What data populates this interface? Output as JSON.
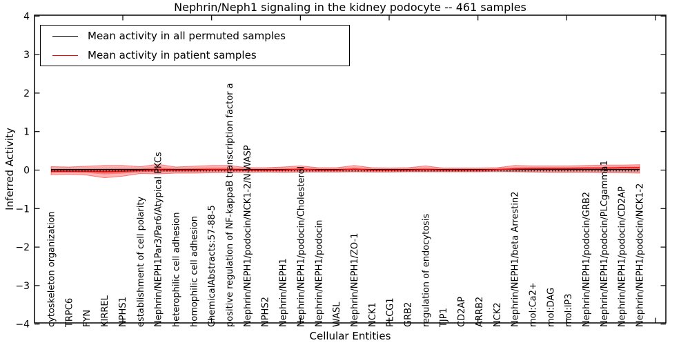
{
  "figure": {
    "title": "Nephrin/Neph1 signaling in the kidney podocyte -- 461 samples",
    "xlabel": "Cellular Entities",
    "ylabel": "Inferred Activity",
    "background_color": "#ffffff"
  },
  "legend": {
    "position": "upper left",
    "items": [
      {
        "label": "Mean activity in all permuted samples",
        "color": "#000000"
      },
      {
        "label": "Mean activity in patient samples",
        "color": "#ff0000"
      }
    ]
  },
  "chart_data": {
    "type": "line",
    "title": "Nephrin/Neph1 signaling in the kidney podocyte -- 461 samples",
    "xlabel": "Cellular Entities",
    "ylabel": "Inferred Activity",
    "ylim": [
      -4,
      4
    ],
    "yticks": [
      4,
      3,
      2,
      1,
      0,
      -1,
      -2,
      -3,
      -4
    ],
    "ytick_labels": [
      "4",
      "3",
      "2",
      "1",
      "0",
      "−1",
      "−2",
      "−3",
      "−4"
    ],
    "grid": false,
    "legend_position": "upper left",
    "zero_line": {
      "y": 0,
      "style": "dotted",
      "color": "#000000"
    },
    "categories": [
      "cytoskeleton organization",
      "TRPC6",
      "FYN",
      "KIRREL",
      "NPHS1",
      "establishment of cell polarity",
      "Nephrin/NEPH1Par3/Par6/Atypical PKCs",
      "heterophilic cell adhesion",
      "homophilic cell adhesion",
      "ChemicalAbstracts:57-88-5",
      "positive regulation of NF-kappaB transcription factor a",
      "Nephrin/NEPH1/podocin/NCK1-2/N-WASP",
      "NPHS2",
      "Nephrin/NEPH1",
      "Nephrin/NEPH1/podocin/Cholesterol",
      "Nephrin/NEPH1/podocin",
      "WASL",
      "Nephrin/NEPH1/ZO-1",
      "NCK1",
      "PLCG1",
      "GRB2",
      "regulation of endocytosis",
      "TJP1",
      "CD2AP",
      "ARRB2",
      "NCK2",
      "Nephrin/NEPH1/beta Arrestin2",
      "mol:Ca2+",
      "mol:DAG",
      "mol:IP3",
      "Nephrin/NEPH1/podocin/GRB2",
      "Nephrin/NEPH1/podocin/PLCgamma1",
      "Nephrin/NEPH1/podocin/CD2AP",
      "Nephrin/NEPH1/podocin/NCK1-2"
    ],
    "series": [
      {
        "name": "Mean activity in all permuted samples",
        "color": "#000000",
        "style": "solid",
        "values": [
          0,
          0,
          0,
          0,
          0,
          0,
          0,
          0,
          0,
          0,
          0,
          0,
          0,
          0,
          0,
          0,
          0,
          0,
          0,
          0,
          0,
          0,
          0,
          0,
          0,
          0,
          0,
          0,
          0,
          0,
          0,
          0,
          0,
          0
        ]
      },
      {
        "name": "Mean activity in patient samples",
        "color": "#ee1111",
        "style": "solid",
        "values": [
          -0.03,
          -0.03,
          -0.03,
          -0.04,
          -0.03,
          -0.01,
          0.01,
          0.0,
          0.0,
          0.01,
          0.01,
          0.0,
          0.0,
          0.0,
          0.02,
          0.0,
          0.0,
          0.02,
          0.0,
          0.0,
          0.0,
          0.01,
          0.0,
          0.0,
          0.0,
          0.01,
          0.03,
          0.04,
          0.04,
          0.04,
          0.05,
          0.05,
          0.06,
          0.06
        ]
      }
    ],
    "bands": [
      {
        "name": "permuted-samples-band",
        "color": "#dcdcdc",
        "opacity": 0.9,
        "upper": [
          0.07,
          0.07,
          0.07,
          0.07,
          0.07,
          0.07,
          0.07,
          0.07,
          0.07,
          0.07,
          0.07,
          0.07,
          0.07,
          0.07,
          0.07,
          0.07,
          0.07,
          0.07,
          0.07,
          0.07,
          0.07,
          0.07,
          0.07,
          0.07,
          0.07,
          0.07,
          0.07,
          0.07,
          0.07,
          0.07,
          0.07,
          0.07,
          0.07,
          0.07
        ],
        "lower": [
          -0.07,
          -0.07,
          -0.07,
          -0.07,
          -0.07,
          -0.07,
          -0.07,
          -0.07,
          -0.07,
          -0.07,
          -0.07,
          -0.07,
          -0.07,
          -0.07,
          -0.07,
          -0.07,
          -0.07,
          -0.07,
          -0.07,
          -0.07,
          -0.07,
          -0.07,
          -0.07,
          -0.07,
          -0.07,
          -0.07,
          -0.07,
          -0.07,
          -0.07,
          -0.07,
          -0.07,
          -0.07,
          -0.07,
          -0.07
        ]
      },
      {
        "name": "patient-samples-band",
        "color": "#ff0000",
        "opacity": 0.28,
        "upper": [
          0.09,
          0.08,
          0.1,
          0.12,
          0.12,
          0.09,
          0.15,
          0.08,
          0.1,
          0.12,
          0.12,
          0.06,
          0.06,
          0.08,
          0.11,
          0.06,
          0.06,
          0.12,
          0.06,
          0.05,
          0.06,
          0.11,
          0.05,
          0.05,
          0.05,
          0.06,
          0.12,
          0.11,
          0.11,
          0.11,
          0.12,
          0.13,
          0.13,
          0.14
        ],
        "lower": [
          -0.12,
          -0.11,
          -0.13,
          -0.2,
          -0.16,
          -0.09,
          -0.1,
          -0.08,
          -0.08,
          -0.07,
          -0.06,
          -0.06,
          -0.05,
          -0.06,
          -0.05,
          -0.05,
          -0.05,
          -0.04,
          -0.05,
          -0.05,
          -0.04,
          -0.04,
          -0.04,
          -0.04,
          -0.04,
          -0.03,
          -0.04,
          -0.05,
          -0.06,
          -0.06,
          -0.06,
          -0.07,
          -0.07,
          -0.08
        ]
      }
    ]
  }
}
